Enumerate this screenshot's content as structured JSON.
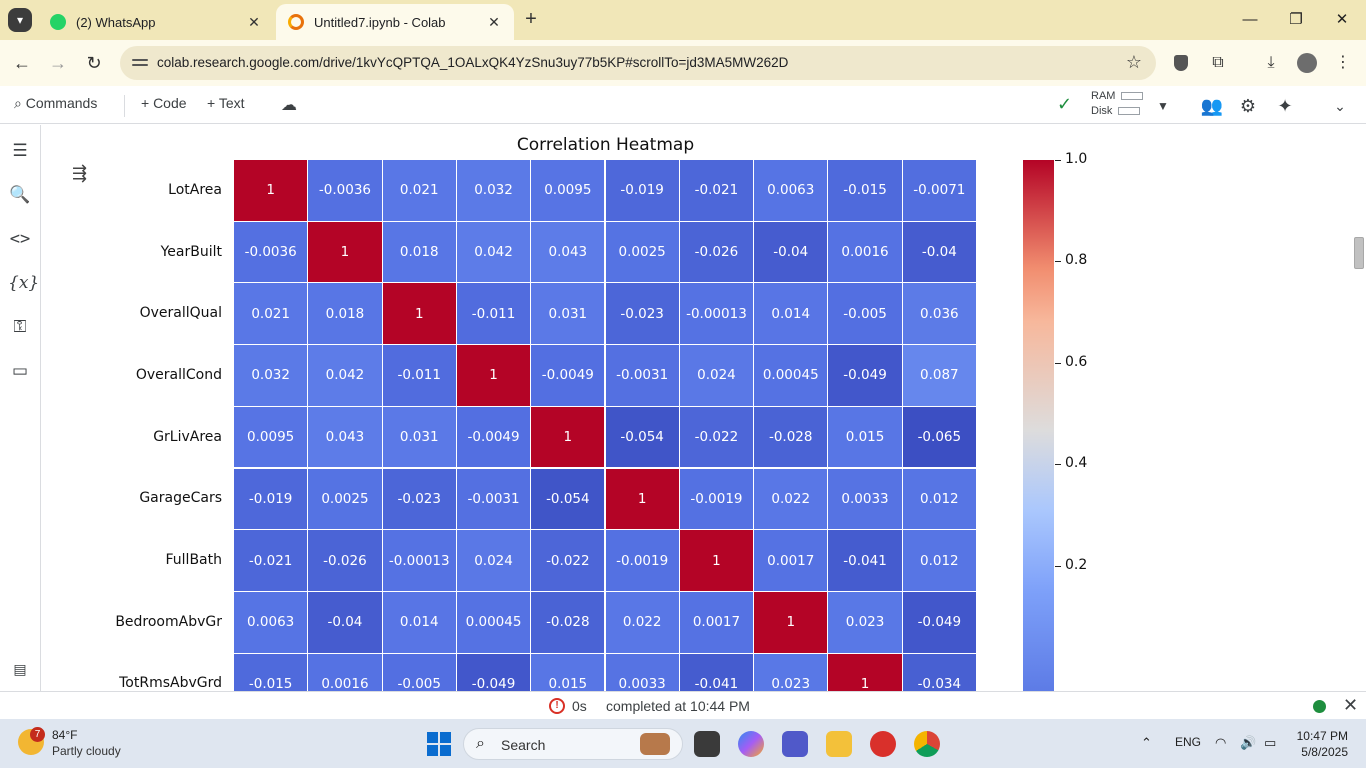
{
  "browser": {
    "tabs": [
      {
        "title": "(2) WhatsApp",
        "active": false
      },
      {
        "title": "Untitled7.ipynb - Colab",
        "active": true
      }
    ],
    "url": "colab.research.google.com/drive/1kvYcQPTQA_1OALxQK4YzSnu3uy77b5KP#scrollTo=jd3MA5MW262D"
  },
  "colab": {
    "toolbar": {
      "commands": "Commands",
      "code": "+ Code",
      "text": "+ Text",
      "ram": "RAM",
      "disk": "Disk"
    }
  },
  "chart_data": {
    "type": "heatmap",
    "title": "Correlation Heatmap",
    "rows": [
      "LotArea",
      "YearBuilt",
      "OverallQual",
      "OverallCond",
      "GrLivArea",
      "GarageCars",
      "FullBath",
      "BedroomAbvGr",
      "TotRmsAbvGrd"
    ],
    "values": [
      [
        "1",
        "-0.0036",
        "0.021",
        "0.032",
        "0.0095",
        "-0.019",
        "-0.021",
        "0.0063",
        "-0.015",
        "-0.0071"
      ],
      [
        "-0.0036",
        "1",
        "0.018",
        "0.042",
        "0.043",
        "0.0025",
        "-0.026",
        "-0.04",
        "0.0016",
        "-0.04"
      ],
      [
        "0.021",
        "0.018",
        "1",
        "-0.011",
        "0.031",
        "-0.023",
        "-0.00013",
        "0.014",
        "-0.005",
        "0.036"
      ],
      [
        "0.032",
        "0.042",
        "-0.011",
        "1",
        "-0.0049",
        "-0.0031",
        "0.024",
        "0.00045",
        "-0.049",
        "0.087"
      ],
      [
        "0.0095",
        "0.043",
        "0.031",
        "-0.0049",
        "1",
        "-0.054",
        "-0.022",
        "-0.028",
        "0.015",
        "-0.065"
      ],
      [
        "-0.019",
        "0.0025",
        "-0.023",
        "-0.0031",
        "-0.054",
        "1",
        "-0.0019",
        "0.022",
        "0.0033",
        "0.012"
      ],
      [
        "-0.021",
        "-0.026",
        "-0.00013",
        "0.024",
        "-0.022",
        "-0.0019",
        "1",
        "0.0017",
        "-0.041",
        "0.012"
      ],
      [
        "0.0063",
        "-0.04",
        "0.014",
        "0.00045",
        "-0.028",
        "0.022",
        "0.0017",
        "1",
        "0.023",
        "-0.049"
      ],
      [
        "-0.015",
        "0.0016",
        "-0.005",
        "-0.049",
        "0.015",
        "0.0033",
        "-0.041",
        "0.023",
        "1",
        "-0.034"
      ]
    ],
    "colorbar": {
      "colormap": "coolwarm",
      "ticks": [
        "1.0",
        "0.8",
        "0.6",
        "0.4",
        "0.2"
      ],
      "tick_values": [
        1.0,
        0.8,
        0.6,
        0.4,
        0.2
      ],
      "range": [
        -0.065,
        1.0
      ]
    }
  },
  "status": {
    "duration": "0s",
    "completed": "completed at 10:44 PM"
  },
  "taskbar": {
    "weather_temp": "84°F",
    "weather_desc": "Partly cloudy",
    "weather_badge": "7",
    "search": "Search",
    "lang": "ENG",
    "time": "10:47 PM",
    "date": "5/8/2025"
  }
}
